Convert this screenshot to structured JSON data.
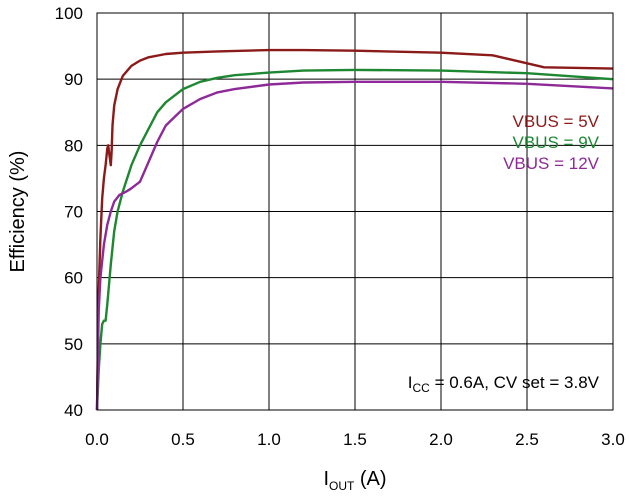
{
  "chart_data": {
    "type": "line",
    "title": "",
    "xlabel_main": "I",
    "xlabel_sub": "OUT",
    "xlabel_unit": " (A)",
    "ylabel": "Efficiency (%)",
    "xlim": [
      0,
      3
    ],
    "ylim": [
      40,
      100
    ],
    "xticks": [
      0.0,
      0.5,
      1.0,
      1.5,
      2.0,
      2.5,
      3.0
    ],
    "xtick_labels": [
      "0.0",
      "0.5",
      "1.0",
      "1.5",
      "2.0",
      "2.5",
      "3.0"
    ],
    "yticks": [
      40,
      50,
      60,
      70,
      80,
      90,
      100
    ],
    "ytick_labels": [
      "40",
      "50",
      "60",
      "70",
      "80",
      "90",
      "100"
    ],
    "grid": true,
    "legend_position": "right",
    "annotation": {
      "part1": "I",
      "part1_sub": "CC",
      "part2": " = 0.6A, CV set = 3.8V"
    },
    "series": [
      {
        "name": "VBUS = 5V",
        "color": "#8B1A1A",
        "x": [
          0.0,
          0.01,
          0.02,
          0.03,
          0.04,
          0.05,
          0.06,
          0.065,
          0.07,
          0.08,
          0.085,
          0.09,
          0.1,
          0.12,
          0.15,
          0.2,
          0.25,
          0.3,
          0.4,
          0.5,
          0.7,
          1.0,
          1.2,
          1.5,
          2.0,
          2.3,
          2.6,
          3.0
        ],
        "y": [
          40,
          58,
          66,
          72,
          75,
          77,
          79.5,
          80,
          79,
          77,
          79,
          83,
          86,
          88.5,
          90.5,
          92,
          92.8,
          93.3,
          93.8,
          94.0,
          94.2,
          94.4,
          94.4,
          94.3,
          94.0,
          93.6,
          91.8,
          91.6
        ]
      },
      {
        "name": "VBUS = 9V",
        "color": "#1E8732",
        "x": [
          0.0,
          0.01,
          0.02,
          0.03,
          0.04,
          0.05,
          0.06,
          0.08,
          0.1,
          0.12,
          0.15,
          0.2,
          0.25,
          0.3,
          0.35,
          0.4,
          0.5,
          0.6,
          0.7,
          0.8,
          1.0,
          1.2,
          1.5,
          2.0,
          2.5,
          3.0
        ],
        "y": [
          40,
          46,
          50,
          53,
          53.5,
          53.5,
          56,
          62,
          67,
          70,
          73,
          77,
          80,
          82.5,
          85,
          86.5,
          88.5,
          89.6,
          90.2,
          90.6,
          91.0,
          91.3,
          91.4,
          91.3,
          90.9,
          90.0
        ]
      },
      {
        "name": "VBUS = 12V",
        "color": "#8E2A97",
        "x": [
          0.0,
          0.01,
          0.02,
          0.04,
          0.06,
          0.08,
          0.1,
          0.13,
          0.17,
          0.2,
          0.25,
          0.3,
          0.35,
          0.4,
          0.5,
          0.6,
          0.7,
          0.8,
          1.0,
          1.2,
          1.5,
          2.0,
          2.5,
          3.0
        ],
        "y": [
          40,
          55,
          60,
          65,
          68,
          70,
          71.5,
          72.5,
          73,
          73.5,
          74.5,
          77.5,
          80.5,
          83,
          85.5,
          87,
          88,
          88.5,
          89.2,
          89.5,
          89.6,
          89.6,
          89.3,
          88.6
        ]
      }
    ]
  }
}
